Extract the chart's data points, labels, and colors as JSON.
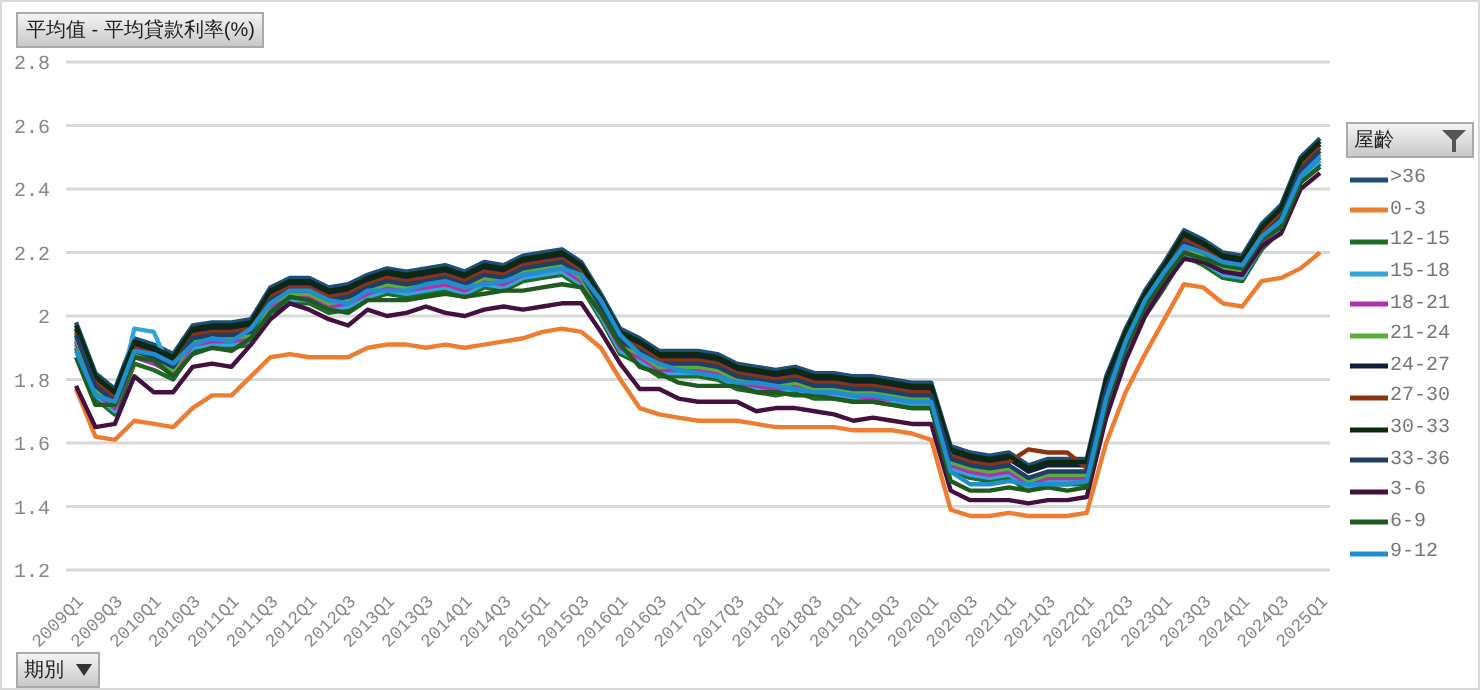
{
  "chart_data": {
    "type": "line",
    "ylabel": "平均值 - 平均貸款利率(%)",
    "xlabel": "期別",
    "legend_title": "屋齡",
    "categories": [
      "2009Q1",
      null,
      "2009Q3",
      null,
      "2010Q1",
      null,
      "2010Q3",
      null,
      "2011Q1",
      null,
      "2011Q3",
      null,
      "2012Q1",
      null,
      "2012Q3",
      null,
      "2013Q1",
      null,
      "2013Q3",
      null,
      "2014Q1",
      null,
      "2014Q3",
      null,
      "2015Q1",
      null,
      "2015Q3",
      null,
      "2016Q1",
      null,
      "2016Q3",
      null,
      "2017Q1",
      null,
      "2017Q3",
      null,
      "2018Q1",
      null,
      "2018Q3",
      null,
      "2019Q1",
      null,
      "2019Q3",
      null,
      "2020Q1",
      null,
      "2020Q3",
      null,
      "2021Q1",
      null,
      "2021Q3",
      null,
      "2022Q1",
      null,
      "2022Q3",
      null,
      "2023Q1",
      null,
      "2023Q3",
      null,
      "2024Q1",
      null,
      "2024Q3",
      null,
      "2025Q1"
    ],
    "ylim": [
      1.2,
      2.8
    ],
    "yticks": [
      1.2,
      1.4,
      1.6,
      1.8,
      2,
      2.2,
      2.4,
      2.6,
      2.8
    ],
    "grid": "y",
    "legend": "right",
    "series": [
      {
        "name": ">36",
        "color": "#1f4e79",
        "values": [
          1.98,
          1.82,
          1.77,
          1.93,
          1.91,
          1.88,
          1.97,
          1.98,
          1.98,
          1.99,
          2.09,
          2.12,
          2.12,
          2.09,
          2.1,
          2.13,
          2.15,
          2.14,
          2.15,
          2.16,
          2.14,
          2.17,
          2.16,
          2.19,
          2.2,
          2.21,
          2.17,
          2.07,
          1.96,
          1.93,
          1.89,
          1.89,
          1.89,
          1.88,
          1.85,
          1.84,
          1.83,
          1.84,
          1.82,
          1.82,
          1.81,
          1.81,
          1.8,
          1.79,
          1.79,
          1.59,
          1.57,
          1.56,
          1.57,
          1.53,
          1.55,
          1.55,
          1.55,
          1.81,
          1.96,
          2.08,
          2.17,
          2.27,
          2.24,
          2.2,
          2.19,
          2.29,
          2.35,
          2.5,
          2.56
        ]
      },
      {
        "name": "0-3",
        "color": "#ed7d31",
        "values": [
          1.77,
          1.62,
          1.61,
          1.67,
          1.66,
          1.65,
          1.71,
          1.75,
          1.75,
          1.81,
          1.87,
          1.88,
          1.87,
          1.87,
          1.87,
          1.9,
          1.91,
          1.91,
          1.9,
          1.91,
          1.9,
          1.91,
          1.92,
          1.93,
          1.95,
          1.96,
          1.95,
          1.9,
          1.8,
          1.71,
          1.69,
          1.68,
          1.67,
          1.67,
          1.67,
          1.66,
          1.65,
          1.65,
          1.65,
          1.65,
          1.64,
          1.64,
          1.64,
          1.63,
          1.61,
          1.39,
          1.37,
          1.37,
          1.38,
          1.37,
          1.37,
          1.37,
          1.38,
          1.6,
          1.76,
          1.88,
          1.99,
          2.1,
          2.09,
          2.04,
          2.03,
          2.11,
          2.12,
          2.15,
          2.2
        ]
      },
      {
        "name": "12-15",
        "color": "#1e6b26",
        "values": [
          1.9,
          1.74,
          1.69,
          1.85,
          1.83,
          1.8,
          1.89,
          1.9,
          1.9,
          1.91,
          2.01,
          2.04,
          2.04,
          2.01,
          2.02,
          2.05,
          2.07,
          2.06,
          2.07,
          2.08,
          2.06,
          2.09,
          2.08,
          2.11,
          2.12,
          2.13,
          2.09,
          1.99,
          1.88,
          1.85,
          1.81,
          1.81,
          1.81,
          1.8,
          1.77,
          1.76,
          1.75,
          1.76,
          1.74,
          1.74,
          1.73,
          1.73,
          1.72,
          1.71,
          1.71,
          1.51,
          1.49,
          1.48,
          1.49,
          1.45,
          1.47,
          1.47,
          1.47,
          1.73,
          1.88,
          2.0,
          2.09,
          2.19,
          2.16,
          2.12,
          2.11,
          2.21,
          2.27,
          2.42,
          2.48
        ]
      },
      {
        "name": "15-18",
        "color": "#34a4dc",
        "values": [
          1.91,
          1.75,
          1.7,
          1.96,
          1.95,
          1.81,
          1.9,
          1.91,
          1.91,
          1.92,
          2.02,
          2.05,
          2.05,
          2.02,
          2.03,
          2.06,
          2.08,
          2.07,
          2.08,
          2.09,
          2.07,
          2.1,
          2.09,
          2.12,
          2.13,
          2.14,
          2.1,
          2.0,
          1.89,
          1.86,
          1.82,
          1.82,
          1.82,
          1.81,
          1.78,
          1.77,
          1.76,
          1.77,
          1.75,
          1.75,
          1.74,
          1.74,
          1.73,
          1.72,
          1.72,
          1.52,
          1.5,
          1.49,
          1.5,
          1.46,
          1.48,
          1.48,
          1.48,
          1.74,
          1.89,
          2.01,
          2.1,
          2.2,
          2.17,
          2.13,
          2.12,
          2.22,
          2.28,
          2.43,
          2.49
        ]
      },
      {
        "name": "18-21",
        "color": "#b030b0",
        "values": [
          1.92,
          1.76,
          1.71,
          1.87,
          1.85,
          1.82,
          1.91,
          1.92,
          1.92,
          1.93,
          2.03,
          2.06,
          2.06,
          2.03,
          2.04,
          2.07,
          2.09,
          2.08,
          2.09,
          2.1,
          2.08,
          2.11,
          2.1,
          2.13,
          2.14,
          2.15,
          2.11,
          2.01,
          1.9,
          1.87,
          1.83,
          1.83,
          1.83,
          1.82,
          1.79,
          1.78,
          1.77,
          1.78,
          1.76,
          1.76,
          1.75,
          1.74,
          1.74,
          1.73,
          1.73,
          1.53,
          1.51,
          1.5,
          1.51,
          1.47,
          1.49,
          1.49,
          1.49,
          1.75,
          1.9,
          2.02,
          2.11,
          2.21,
          2.18,
          2.14,
          2.13,
          2.23,
          2.29,
          2.44,
          2.5
        ]
      },
      {
        "name": "21-24",
        "color": "#5aad3a",
        "values": [
          1.93,
          1.77,
          1.72,
          1.88,
          1.86,
          1.83,
          1.92,
          1.93,
          1.93,
          1.94,
          2.04,
          2.07,
          2.07,
          2.04,
          2.05,
          2.08,
          2.1,
          2.09,
          2.1,
          2.11,
          2.09,
          2.12,
          2.11,
          2.14,
          2.15,
          2.16,
          2.12,
          2.02,
          1.91,
          1.88,
          1.84,
          1.84,
          1.84,
          1.83,
          1.8,
          1.79,
          1.78,
          1.79,
          1.77,
          1.77,
          1.76,
          1.76,
          1.75,
          1.74,
          1.74,
          1.54,
          1.52,
          1.51,
          1.52,
          1.48,
          1.5,
          1.5,
          1.5,
          1.76,
          1.91,
          2.03,
          2.12,
          2.22,
          2.19,
          2.15,
          2.14,
          2.24,
          2.3,
          2.45,
          2.51
        ]
      },
      {
        "name": "24-27",
        "color": "#0f1f3a",
        "values": [
          1.96,
          1.8,
          1.75,
          1.91,
          1.89,
          1.86,
          1.95,
          1.96,
          1.96,
          1.97,
          2.07,
          2.1,
          2.1,
          2.07,
          2.08,
          2.11,
          2.13,
          2.12,
          2.13,
          2.14,
          2.12,
          2.15,
          2.14,
          2.17,
          2.18,
          2.19,
          2.15,
          2.05,
          1.94,
          1.91,
          1.87,
          1.87,
          1.87,
          1.86,
          1.83,
          1.82,
          1.81,
          1.82,
          1.8,
          1.8,
          1.79,
          1.79,
          1.78,
          1.77,
          1.77,
          1.57,
          1.55,
          1.54,
          1.55,
          1.51,
          1.53,
          1.53,
          1.53,
          1.79,
          1.94,
          2.06,
          2.15,
          2.25,
          2.22,
          2.18,
          2.17,
          2.27,
          2.33,
          2.48,
          2.54
        ]
      },
      {
        "name": "27-30",
        "color": "#8b3510",
        "values": [
          1.95,
          1.79,
          1.74,
          1.9,
          1.88,
          1.85,
          1.94,
          1.95,
          1.95,
          1.96,
          2.06,
          2.09,
          2.09,
          2.06,
          2.07,
          2.1,
          2.12,
          2.11,
          2.12,
          2.13,
          2.11,
          2.14,
          2.13,
          2.16,
          2.17,
          2.18,
          2.14,
          2.04,
          1.93,
          1.9,
          1.86,
          1.86,
          1.86,
          1.85,
          1.82,
          1.81,
          1.8,
          1.81,
          1.79,
          1.79,
          1.78,
          1.78,
          1.77,
          1.76,
          1.76,
          1.56,
          1.54,
          1.53,
          1.54,
          1.58,
          1.57,
          1.57,
          1.52,
          1.78,
          1.93,
          2.05,
          2.14,
          2.24,
          2.21,
          2.17,
          2.16,
          2.26,
          2.32,
          2.47,
          2.53
        ]
      },
      {
        "name": "30-33",
        "color": "#0a2a10",
        "values": [
          1.97,
          1.81,
          1.76,
          1.92,
          1.9,
          1.87,
          1.96,
          1.97,
          1.97,
          1.98,
          2.08,
          2.11,
          2.11,
          2.08,
          2.09,
          2.12,
          2.14,
          2.13,
          2.14,
          2.15,
          2.13,
          2.16,
          2.15,
          2.18,
          2.19,
          2.2,
          2.16,
          2.06,
          1.95,
          1.92,
          1.88,
          1.88,
          1.88,
          1.87,
          1.84,
          1.83,
          1.82,
          1.83,
          1.81,
          1.81,
          1.8,
          1.8,
          1.79,
          1.78,
          1.78,
          1.58,
          1.56,
          1.55,
          1.56,
          1.52,
          1.54,
          1.54,
          1.54,
          1.8,
          1.95,
          2.07,
          2.16,
          2.26,
          2.23,
          2.19,
          2.18,
          2.28,
          2.34,
          2.49,
          2.55
        ]
      },
      {
        "name": "33-36",
        "color": "#1f3f6a",
        "values": [
          1.94,
          1.78,
          1.73,
          1.89,
          1.87,
          1.84,
          1.93,
          1.94,
          1.94,
          1.95,
          2.05,
          2.08,
          2.08,
          2.05,
          2.06,
          2.09,
          2.11,
          2.1,
          2.11,
          2.12,
          2.1,
          2.13,
          2.12,
          2.15,
          2.16,
          2.17,
          2.13,
          2.03,
          1.92,
          1.89,
          1.85,
          1.85,
          1.85,
          1.84,
          1.81,
          1.8,
          1.79,
          1.8,
          1.78,
          1.78,
          1.77,
          1.77,
          1.76,
          1.75,
          1.75,
          1.55,
          1.53,
          1.52,
          1.53,
          1.49,
          1.51,
          1.51,
          1.51,
          1.77,
          1.92,
          2.04,
          2.13,
          2.23,
          2.2,
          2.16,
          2.15,
          2.25,
          2.31,
          2.46,
          2.52
        ]
      },
      {
        "name": "3-6",
        "color": "#44103f",
        "values": [
          1.78,
          1.65,
          1.66,
          1.81,
          1.76,
          1.76,
          1.84,
          1.85,
          1.84,
          1.91,
          1.99,
          2.04,
          2.02,
          1.99,
          1.97,
          2.02,
          2.0,
          2.01,
          2.03,
          2.01,
          2.0,
          2.02,
          2.03,
          2.02,
          2.03,
          2.04,
          2.04,
          1.95,
          1.85,
          1.77,
          1.77,
          1.74,
          1.73,
          1.73,
          1.73,
          1.7,
          1.71,
          1.71,
          1.7,
          1.69,
          1.67,
          1.68,
          1.67,
          1.66,
          1.66,
          1.45,
          1.42,
          1.42,
          1.42,
          1.41,
          1.42,
          1.42,
          1.43,
          1.68,
          1.86,
          2.0,
          2.1,
          2.18,
          2.17,
          2.14,
          2.13,
          2.22,
          2.26,
          2.4,
          2.45
        ]
      },
      {
        "name": "6-9",
        "color": "#1f5a1f",
        "values": [
          1.87,
          1.72,
          1.72,
          1.87,
          1.86,
          1.81,
          1.88,
          1.9,
          1.89,
          1.93,
          2.01,
          2.06,
          2.05,
          2.02,
          2.01,
          2.05,
          2.05,
          2.05,
          2.06,
          2.07,
          2.06,
          2.07,
          2.08,
          2.08,
          2.09,
          2.1,
          2.09,
          2.01,
          1.91,
          1.84,
          1.82,
          1.79,
          1.78,
          1.78,
          1.78,
          1.76,
          1.76,
          1.75,
          1.75,
          1.74,
          1.73,
          1.73,
          1.72,
          1.71,
          1.71,
          1.48,
          1.45,
          1.45,
          1.46,
          1.45,
          1.46,
          1.45,
          1.46,
          1.72,
          1.9,
          2.03,
          2.12,
          2.2,
          2.18,
          2.16,
          2.15,
          2.24,
          2.28,
          2.42,
          2.47
        ]
      },
      {
        "name": "9-12",
        "color": "#1f8fd0",
        "values": [
          1.89,
          1.75,
          1.73,
          1.89,
          1.88,
          1.85,
          1.91,
          1.93,
          1.92,
          1.96,
          2.04,
          2.08,
          2.08,
          2.05,
          2.04,
          2.08,
          2.08,
          2.08,
          2.1,
          2.11,
          2.09,
          2.1,
          2.11,
          2.13,
          2.14,
          2.15,
          2.13,
          2.05,
          1.94,
          1.88,
          1.85,
          1.83,
          1.82,
          1.81,
          1.79,
          1.79,
          1.78,
          1.77,
          1.76,
          1.76,
          1.75,
          1.75,
          1.74,
          1.73,
          1.73,
          1.51,
          1.47,
          1.47,
          1.48,
          1.47,
          1.47,
          1.47,
          1.48,
          1.74,
          1.92,
          2.05,
          2.14,
          2.22,
          2.2,
          2.17,
          2.16,
          2.25,
          2.3,
          2.44,
          2.5
        ]
      }
    ]
  }
}
